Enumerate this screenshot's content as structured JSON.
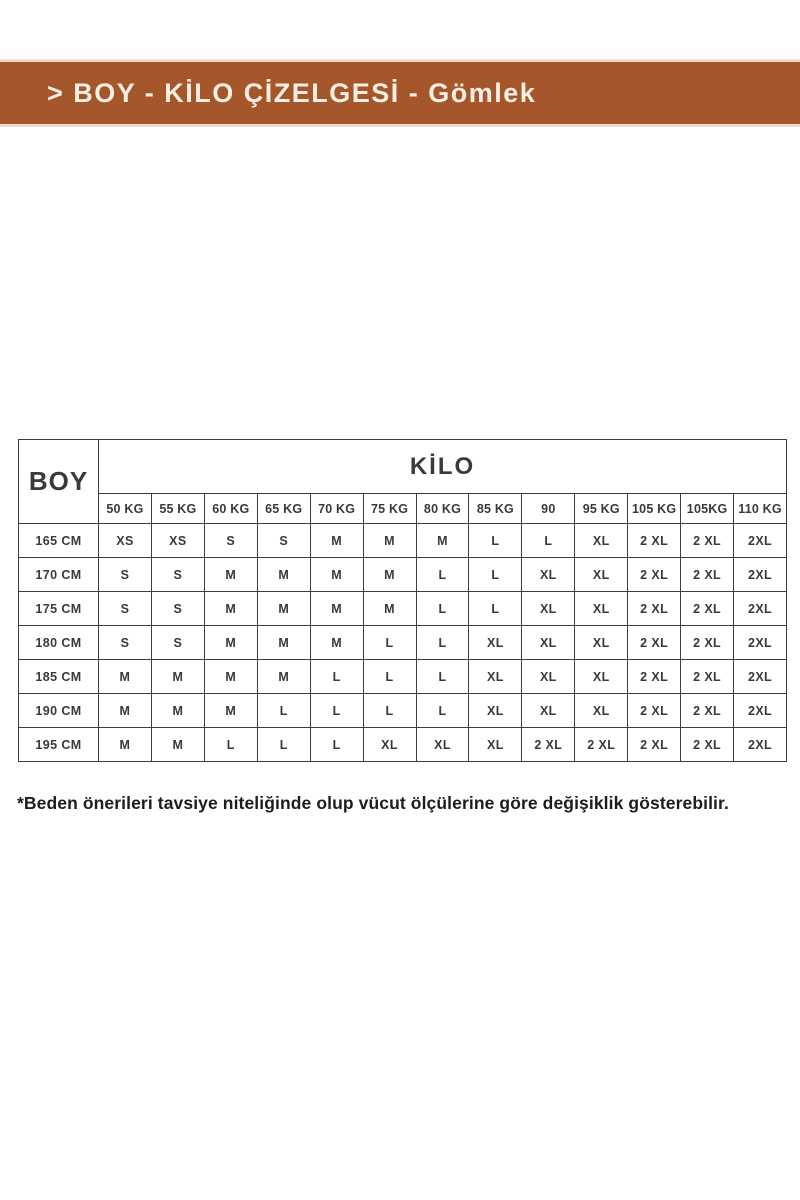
{
  "header": {
    "title": "> BOY - KİLO ÇİZELGESİ - Gömlek",
    "bar_color": "#a5572b",
    "bar_edge_color": "#f0dbca",
    "text_color": "#f7efe3"
  },
  "chart_data": {
    "type": "table",
    "title": "BOY - KİLO ÇİZELGESİ - Gömlek",
    "corner_header": "BOY",
    "column_group_header": "KİLO",
    "weight_columns": [
      "50 KG",
      "55 KG",
      "60 KG",
      "65 KG",
      "70 KG",
      "75 KG",
      "80 KG",
      "85 KG",
      "90",
      "95 KG",
      "105 KG",
      "105KG",
      "110 KG"
    ],
    "rows": [
      {
        "height": "165 CM",
        "sizes": [
          "XS",
          "XS",
          "S",
          "S",
          "M",
          "M",
          "M",
          "L",
          "L",
          "XL",
          "2 XL",
          "2 XL",
          "2XL"
        ]
      },
      {
        "height": "170 CM",
        "sizes": [
          "S",
          "S",
          "M",
          "M",
          "M",
          "M",
          "L",
          "L",
          "XL",
          "XL",
          "2 XL",
          "2 XL",
          "2XL"
        ]
      },
      {
        "height": "175 CM",
        "sizes": [
          "S",
          "S",
          "M",
          "M",
          "M",
          "M",
          "L",
          "L",
          "XL",
          "XL",
          "2 XL",
          "2 XL",
          "2XL"
        ]
      },
      {
        "height": "180 CM",
        "sizes": [
          "S",
          "S",
          "M",
          "M",
          "M",
          "L",
          "L",
          "XL",
          "XL",
          "XL",
          "2 XL",
          "2 XL",
          "2XL"
        ]
      },
      {
        "height": "185 CM",
        "sizes": [
          "M",
          "M",
          "M",
          "M",
          "L",
          "L",
          "L",
          "XL",
          "XL",
          "XL",
          "2 XL",
          "2 XL",
          "2XL"
        ]
      },
      {
        "height": "190 CM",
        "sizes": [
          "M",
          "M",
          "M",
          "L",
          "L",
          "L",
          "L",
          "XL",
          "XL",
          "XL",
          "2 XL",
          "2 XL",
          "2XL"
        ]
      },
      {
        "height": "195 CM",
        "sizes": [
          "M",
          "M",
          "L",
          "L",
          "L",
          "XL",
          "XL",
          "XL",
          "2 XL",
          "2 XL",
          "2 XL",
          "2 XL",
          "2XL"
        ]
      }
    ],
    "text_color": "#3a3a3a",
    "border_color": "#3d3d3d"
  },
  "footnote": "*Beden önerileri tavsiye niteliğinde olup vücut ölçülerine göre değişiklik gösterebilir."
}
